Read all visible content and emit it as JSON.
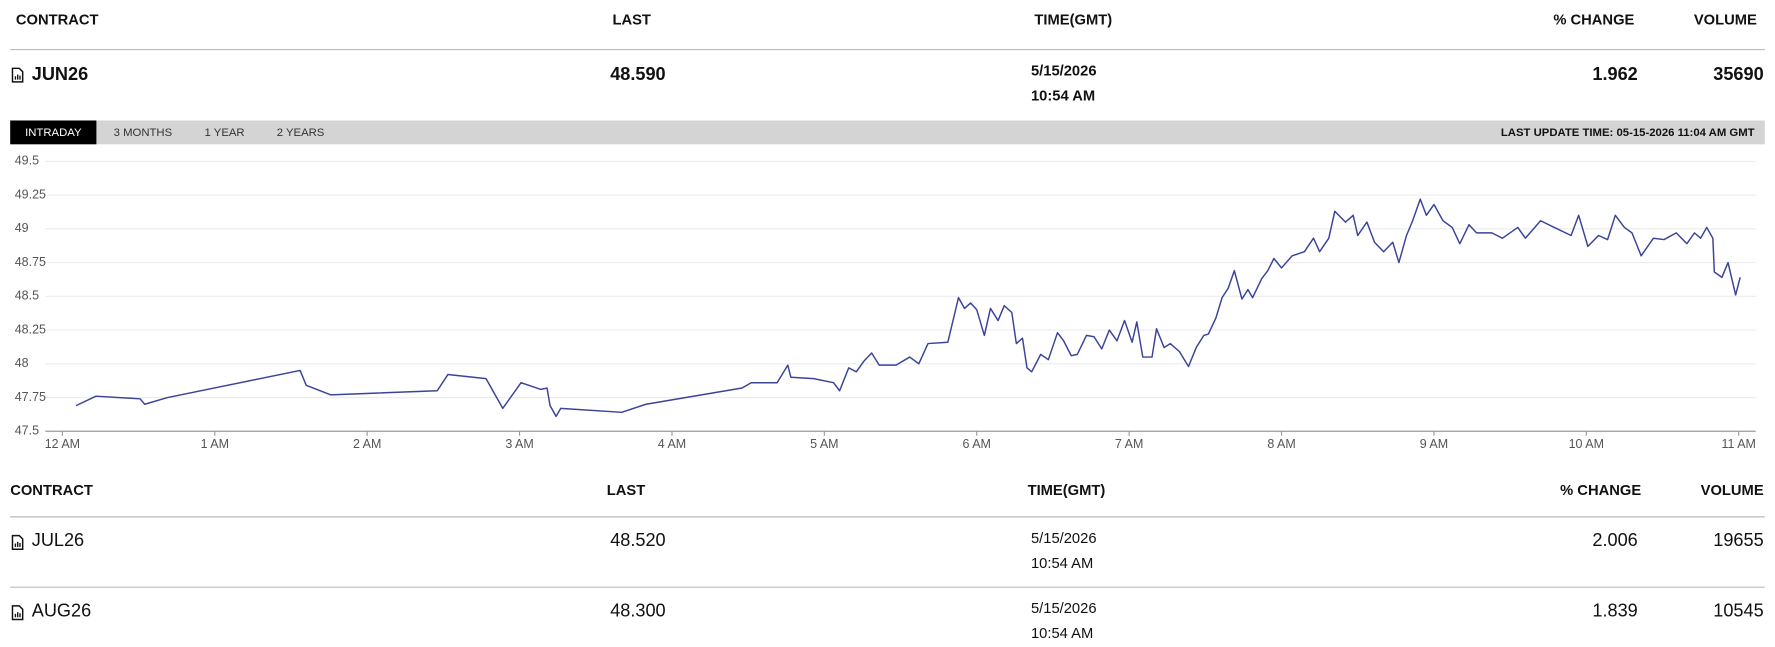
{
  "table_top": {
    "headers": [
      "CONTRACT",
      "LAST",
      "TIME(GMT)",
      "% CHANGE",
      "VOLUME"
    ],
    "row": {
      "contract": "JUN26",
      "last": "48.590",
      "date": "5/15/2026",
      "time": "10:54 AM",
      "change": "1.962",
      "volume": "35690"
    }
  },
  "tabs": [
    "INTRADAY",
    "3 MONTHS",
    "1 YEAR",
    "2 YEARS"
  ],
  "last_update": "LAST UPDATE TIME: 05-15-2026 11:04 AM GMT",
  "chart_data": {
    "type": "line",
    "color": "#3b4499",
    "grid": true,
    "xlim": [
      0,
      11
    ],
    "xticks": [
      {
        "value": 0,
        "label": "12 AM"
      },
      {
        "value": 1,
        "label": "1 AM"
      },
      {
        "value": 2,
        "label": "2 AM"
      },
      {
        "value": 3,
        "label": "3 AM"
      },
      {
        "value": 4,
        "label": "4 AM"
      },
      {
        "value": 5,
        "label": "5 AM"
      },
      {
        "value": 6,
        "label": "6 AM"
      },
      {
        "value": 7,
        "label": "7 AM"
      },
      {
        "value": 8,
        "label": "8 AM"
      },
      {
        "value": 9,
        "label": "9 AM"
      },
      {
        "value": 10,
        "label": "10 AM"
      },
      {
        "value": 11,
        "label": "11 AM"
      }
    ],
    "ylim": [
      47.5,
      49.5
    ],
    "yticks": [
      47.5,
      47.75,
      48,
      48.25,
      48.5,
      48.75,
      49,
      49.25,
      49.5
    ],
    "x": [
      0.09,
      0.22,
      0.51,
      0.54,
      0.69,
      1.56,
      1.6,
      1.76,
      2.46,
      2.53,
      2.78,
      2.89,
      3.01,
      3.14,
      3.18,
      3.2,
      3.24,
      3.27,
      3.67,
      3.83,
      4.46,
      4.52,
      4.69,
      4.76,
      4.78,
      4.93,
      5.06,
      5.1,
      5.16,
      5.21,
      5.26,
      5.31,
      5.36,
      5.47,
      5.56,
      5.62,
      5.68,
      5.81,
      5.88,
      5.92,
      5.96,
      6.0,
      6.05,
      6.09,
      6.14,
      6.18,
      6.23,
      6.26,
      6.3,
      6.33,
      6.36,
      6.42,
      6.47,
      6.53,
      6.57,
      6.62,
      6.66,
      6.72,
      6.77,
      6.82,
      6.87,
      6.92,
      6.97,
      7.02,
      7.05,
      7.09,
      7.15,
      7.18,
      7.23,
      7.27,
      7.33,
      7.39,
      7.44,
      7.49,
      7.52,
      7.57,
      7.61,
      7.65,
      7.69,
      7.74,
      7.78,
      7.81,
      7.87,
      7.91,
      7.95,
      8.0,
      8.07,
      8.15,
      8.21,
      8.25,
      8.31,
      8.35,
      8.42,
      8.47,
      8.5,
      8.56,
      8.61,
      8.67,
      8.73,
      8.77,
      8.82,
      8.86,
      8.91,
      8.95,
      9.0,
      9.06,
      9.12,
      9.17,
      9.23,
      9.28,
      9.38,
      9.45,
      9.55,
      9.6,
      9.7,
      9.79,
      9.9,
      9.95,
      10.01,
      10.08,
      10.14,
      10.19,
      10.25,
      10.3,
      10.36,
      10.44,
      10.51,
      10.59,
      10.66,
      10.71,
      10.75,
      10.79,
      10.83,
      10.84,
      10.89,
      10.93,
      10.98,
      11.01
    ],
    "values": [
      47.69,
      47.76,
      47.74,
      47.7,
      47.75,
      47.95,
      47.84,
      47.77,
      47.8,
      47.92,
      47.89,
      47.67,
      47.86,
      47.81,
      47.82,
      47.69,
      47.61,
      47.67,
      47.64,
      47.7,
      47.82,
      47.86,
      47.86,
      47.99,
      47.9,
      47.89,
      47.86,
      47.8,
      47.97,
      47.94,
      48.02,
      48.08,
      47.99,
      47.99,
      48.05,
      48.0,
      48.15,
      48.16,
      48.49,
      48.41,
      48.45,
      48.4,
      48.21,
      48.41,
      48.32,
      48.43,
      48.38,
      48.15,
      48.19,
      47.97,
      47.94,
      48.07,
      48.03,
      48.23,
      48.17,
      48.06,
      48.07,
      48.21,
      48.2,
      48.11,
      48.25,
      48.17,
      48.32,
      48.16,
      48.31,
      48.05,
      48.05,
      48.26,
      48.12,
      48.15,
      48.09,
      47.98,
      48.12,
      48.21,
      48.22,
      48.34,
      48.49,
      48.56,
      48.69,
      48.48,
      48.55,
      48.49,
      48.63,
      48.69,
      48.78,
      48.71,
      48.8,
      48.83,
      48.93,
      48.83,
      48.93,
      49.13,
      49.05,
      49.1,
      48.95,
      49.05,
      48.9,
      48.83,
      48.9,
      48.75,
      48.95,
      49.06,
      49.22,
      49.1,
      49.18,
      49.06,
      49.01,
      48.89,
      49.03,
      48.97,
      48.97,
      48.93,
      49.01,
      48.93,
      49.06,
      49.01,
      48.95,
      49.1,
      48.87,
      48.95,
      48.92,
      49.1,
      49.01,
      48.97,
      48.8,
      48.93,
      48.92,
      48.97,
      48.89,
      48.97,
      48.93,
      49.01,
      48.93,
      48.68,
      48.64,
      48.75,
      48.51,
      48.64
    ]
  },
  "table_bottom": {
    "headers": [
      "CONTRACT",
      "LAST",
      "TIME(GMT)",
      "% CHANGE",
      "VOLUME"
    ],
    "rows": [
      {
        "contract": "JUL26",
        "last": "48.520",
        "date": "5/15/2026",
        "time": "10:54 AM",
        "change": "2.006",
        "volume": "19655"
      },
      {
        "contract": "AUG26",
        "last": "48.300",
        "date": "5/15/2026",
        "time": "10:54 AM",
        "change": "1.839",
        "volume": "10545"
      }
    ]
  }
}
